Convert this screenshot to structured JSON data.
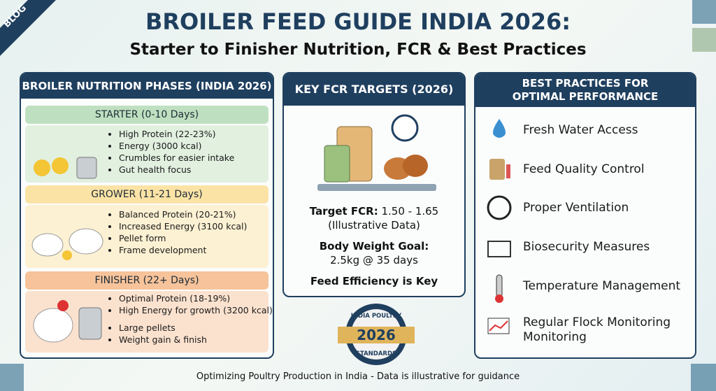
{
  "ribbon": "BLOG",
  "header": {
    "title": "BROILER FEED GUIDE INDIA 2026:",
    "subtitle": "Starter to Finisher Nutrition, FCR & Best Practices"
  },
  "phases": {
    "title": "BROILER NUTRITION PHASES (INDIA 2026)",
    "items": [
      {
        "name": "STARTER (0-10 Days)",
        "bullets": [
          "High Protein (22-23%)",
          "Energy (3000 kcal)",
          "Crumbles for easier intake",
          "Gut health focus"
        ]
      },
      {
        "name": "GROWER (11-21 Days)",
        "bullets": [
          "Balanced Protein (20-21%)",
          "Increased Energy (3100 kcal)",
          "Pellet form",
          "Frame development"
        ]
      },
      {
        "name": "FINISHER (22+ Days)",
        "bullets": [
          "Optimal Protein (18-19%)",
          "High Energy for growth (3200 kcal)",
          "Large pellets",
          "Weight gain & finish"
        ]
      }
    ]
  },
  "fcr": {
    "title": "KEY FCR TARGETS (2026)",
    "target_label": "Target FCR:",
    "target_value": "1.50 - 1.65",
    "note": "(Illustrative Data)",
    "weight_label": "Body Weight Goal:",
    "weight_value": "2.5kg @ 35 days",
    "efficiency": "Feed Efficiency is Key"
  },
  "badge": {
    "top": "INDIA POULTRY",
    "year": "2026",
    "bottom": "STANDARDS"
  },
  "practices": {
    "title": [
      "BEST PRACTICES FOR",
      "OPTIMAL PERFORMANCE"
    ],
    "items": [
      {
        "lines": [
          "Fresh Water Access"
        ]
      },
      {
        "lines": [
          "Feed Quality Control"
        ]
      },
      {
        "lines": [
          "Proper Ventilation"
        ]
      },
      {
        "lines": [
          "Biosecurity Measures"
        ]
      },
      {
        "lines": [
          "Temperature Management"
        ]
      },
      {
        "lines": [
          "Regular Flock Monitoring",
          "Monitoring"
        ]
      }
    ]
  },
  "footer": "Optimizing Poultry Production in India - Data is illustrative for guidance"
}
